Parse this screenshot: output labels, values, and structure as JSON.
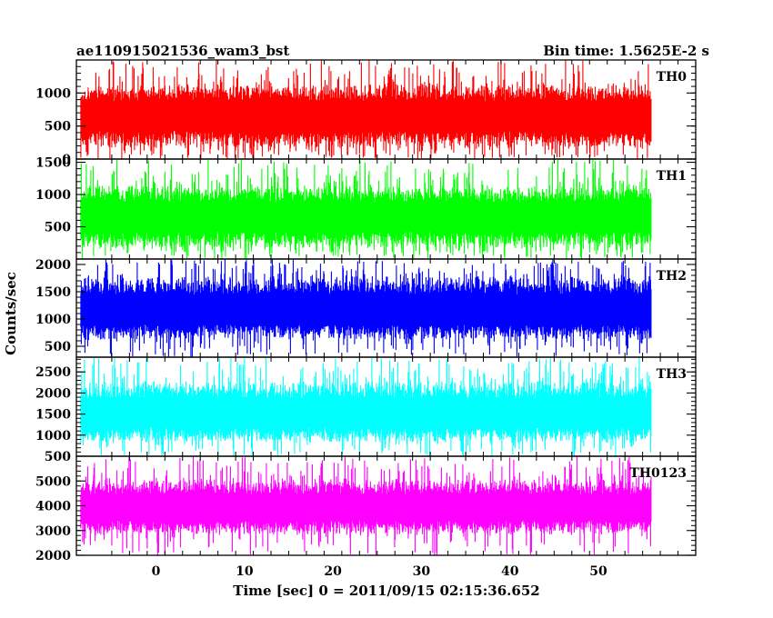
{
  "chart_data": {
    "type": "line",
    "title": "ae110915021536_wam3_bst",
    "subtitle": "Bin time: 1.5625E-2 s",
    "xlabel": "Time [sec] 0 = 2011/09/15 02:15:36.652",
    "ylabel": "Counts/sec",
    "xlim": [
      -9,
      61
    ],
    "data_x_range": [
      -8.5,
      56
    ],
    "x_ticks": [
      0,
      10,
      20,
      30,
      40,
      50
    ],
    "panels": [
      {
        "name": "TH0",
        "color": "#ff0000",
        "ylim": [
          0,
          1500
        ],
        "y_ticks": [
          0,
          500,
          1000
        ],
        "band": {
          "mean": 650,
          "typical_low": 150,
          "typical_high": 1150,
          "min": 0,
          "max": 1500
        }
      },
      {
        "name": "TH1",
        "color": "#00ff00",
        "ylim": [
          0,
          1550
        ],
        "y_ticks": [
          500,
          1000,
          1500
        ],
        "band": {
          "mean": 650,
          "typical_low": 150,
          "typical_high": 1150,
          "min": 0,
          "max": 1550
        }
      },
      {
        "name": "TH2",
        "color": "#0000ff",
        "ylim": [
          300,
          2100
        ],
        "y_ticks": [
          500,
          1000,
          1500,
          2000
        ],
        "band": {
          "mean": 1150,
          "typical_low": 600,
          "typical_high": 1800,
          "min": 300,
          "max": 2100
        }
      },
      {
        "name": "TH3",
        "color": "#00ffff",
        "ylim": [
          500,
          2850
        ],
        "y_ticks": [
          500,
          1000,
          1500,
          2000,
          2500
        ],
        "band": {
          "mean": 1500,
          "typical_low": 800,
          "typical_high": 2300,
          "min": 500,
          "max": 2850
        }
      },
      {
        "name": "TH0123",
        "color": "#ff00ff",
        "ylim": [
          2000,
          6000
        ],
        "y_ticks": [
          2000,
          3000,
          4000,
          5000
        ],
        "band": {
          "mean": 3900,
          "typical_low": 2800,
          "typical_high": 5100,
          "min": 2000,
          "max": 6000
        }
      }
    ]
  }
}
